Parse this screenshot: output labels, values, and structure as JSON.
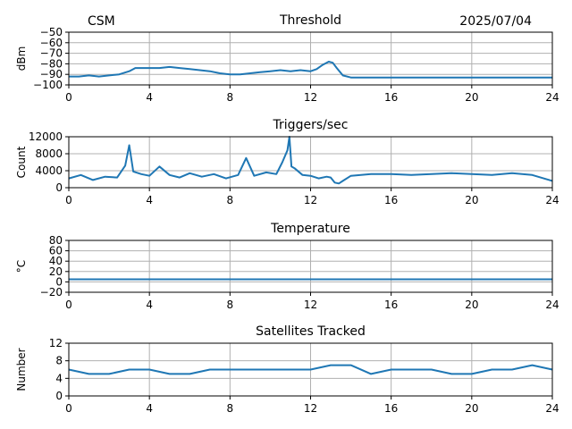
{
  "header": {
    "left": "CSM",
    "right": "2025/07/04"
  },
  "theme": {
    "line_color": "#1f77b4",
    "grid_color": "#b0b0b0"
  },
  "chart_data": [
    {
      "type": "line",
      "title": "Threshold",
      "xlabel": "",
      "ylabel": "dBm",
      "xlim": [
        0,
        24
      ],
      "ylim": [
        -100,
        -50
      ],
      "xticks": [
        0,
        4,
        8,
        12,
        16,
        20,
        24
      ],
      "yticks": [
        -100,
        -90,
        -80,
        -70,
        -60,
        -50
      ],
      "yticklabels": [
        "−100",
        "−90",
        "−80",
        "−70",
        "−60",
        "−50"
      ],
      "grid": true,
      "series": [
        {
          "x": [
            0,
            0.5,
            1,
            1.5,
            2,
            2.5,
            3,
            3.3,
            3.6,
            4,
            4.5,
            5,
            5.5,
            6,
            6.5,
            7,
            7.5,
            8,
            8.5,
            9,
            9.5,
            10,
            10.5,
            11,
            11.5,
            12,
            12.3,
            12.6,
            12.9,
            13.1,
            13.3,
            13.6,
            14,
            15,
            16,
            17,
            18,
            19,
            20,
            21,
            22,
            23,
            24
          ],
          "y": [
            -92,
            -92,
            -91,
            -92,
            -91,
            -90,
            -87,
            -84,
            -84,
            -84,
            -84,
            -83,
            -84,
            -85,
            -86,
            -87,
            -89,
            -90,
            -90,
            -89,
            -88,
            -87,
            -86,
            -87,
            -86,
            -87,
            -85,
            -81,
            -78,
            -79,
            -84,
            -91,
            -93,
            -93,
            -93,
            -93,
            -93,
            -93,
            -93,
            -93,
            -93,
            -93,
            -93
          ]
        }
      ]
    },
    {
      "type": "line",
      "title": "Triggers/sec",
      "xlabel": "",
      "ylabel": "Count",
      "xlim": [
        0,
        24
      ],
      "ylim": [
        0,
        12000
      ],
      "xticks": [
        0,
        4,
        8,
        12,
        16,
        20,
        24
      ],
      "yticks": [
        0,
        4000,
        8000,
        12000
      ],
      "yticklabels": [
        "0",
        "4000",
        "8000",
        "12000"
      ],
      "grid": true,
      "series": [
        {
          "x": [
            0,
            0.6,
            1.2,
            1.8,
            2.4,
            2.8,
            3.0,
            3.2,
            3.6,
            4.0,
            4.5,
            5.0,
            5.5,
            6.0,
            6.6,
            7.2,
            7.8,
            8.4,
            8.8,
            9.2,
            9.8,
            10.3,
            10.6,
            10.85,
            10.95,
            11.05,
            11.2,
            11.6,
            12.0,
            12.4,
            12.8,
            13.0,
            13.2,
            13.4,
            13.6,
            14.0,
            15.0,
            16.0,
            17.0,
            18.0,
            19.0,
            20.0,
            21.0,
            22.0,
            23.0,
            24.0
          ],
          "y": [
            2200,
            3000,
            1800,
            2600,
            2400,
            5200,
            10000,
            3800,
            3200,
            2800,
            5000,
            3000,
            2400,
            3400,
            2600,
            3200,
            2200,
            3000,
            7000,
            2800,
            3600,
            3200,
            6000,
            8800,
            12000,
            5000,
            4600,
            3000,
            2800,
            2200,
            2600,
            2400,
            1200,
            1000,
            1600,
            2800,
            3200,
            3200,
            3000,
            3200,
            3400,
            3200,
            3000,
            3400,
            3000,
            1600
          ]
        }
      ]
    },
    {
      "type": "line",
      "title": "Temperature",
      "xlabel": "",
      "ylabel": "°C",
      "xlim": [
        0,
        24
      ],
      "ylim": [
        -20,
        80
      ],
      "xticks": [
        0,
        4,
        8,
        12,
        16,
        20,
        24
      ],
      "yticks": [
        -20,
        0,
        20,
        40,
        60,
        80
      ],
      "yticklabels": [
        "−20",
        "0",
        "20",
        "40",
        "60",
        "80"
      ],
      "grid": true,
      "series": [
        {
          "x": [
            0,
            24
          ],
          "y": [
            5,
            5
          ]
        }
      ]
    },
    {
      "type": "line",
      "title": "Satellites Tracked",
      "xlabel": "",
      "ylabel": "Number",
      "xlim": [
        0,
        24
      ],
      "ylim": [
        0,
        12
      ],
      "xticks": [
        0,
        4,
        8,
        12,
        16,
        20,
        24
      ],
      "yticks": [
        0,
        4,
        8,
        12
      ],
      "yticklabels": [
        "0",
        "4",
        "8",
        "12"
      ],
      "grid": true,
      "series": [
        {
          "x": [
            0,
            1,
            2,
            3,
            4,
            5,
            6,
            7,
            8,
            9,
            10,
            11,
            12,
            13,
            14,
            15,
            16,
            17,
            18,
            19,
            20,
            21,
            22,
            23,
            24
          ],
          "y": [
            6,
            5,
            5,
            6,
            6,
            5,
            5,
            6,
            6,
            6,
            6,
            6,
            6,
            7,
            7,
            5,
            6,
            6,
            6,
            5,
            5,
            6,
            6,
            7,
            6
          ]
        }
      ]
    }
  ]
}
